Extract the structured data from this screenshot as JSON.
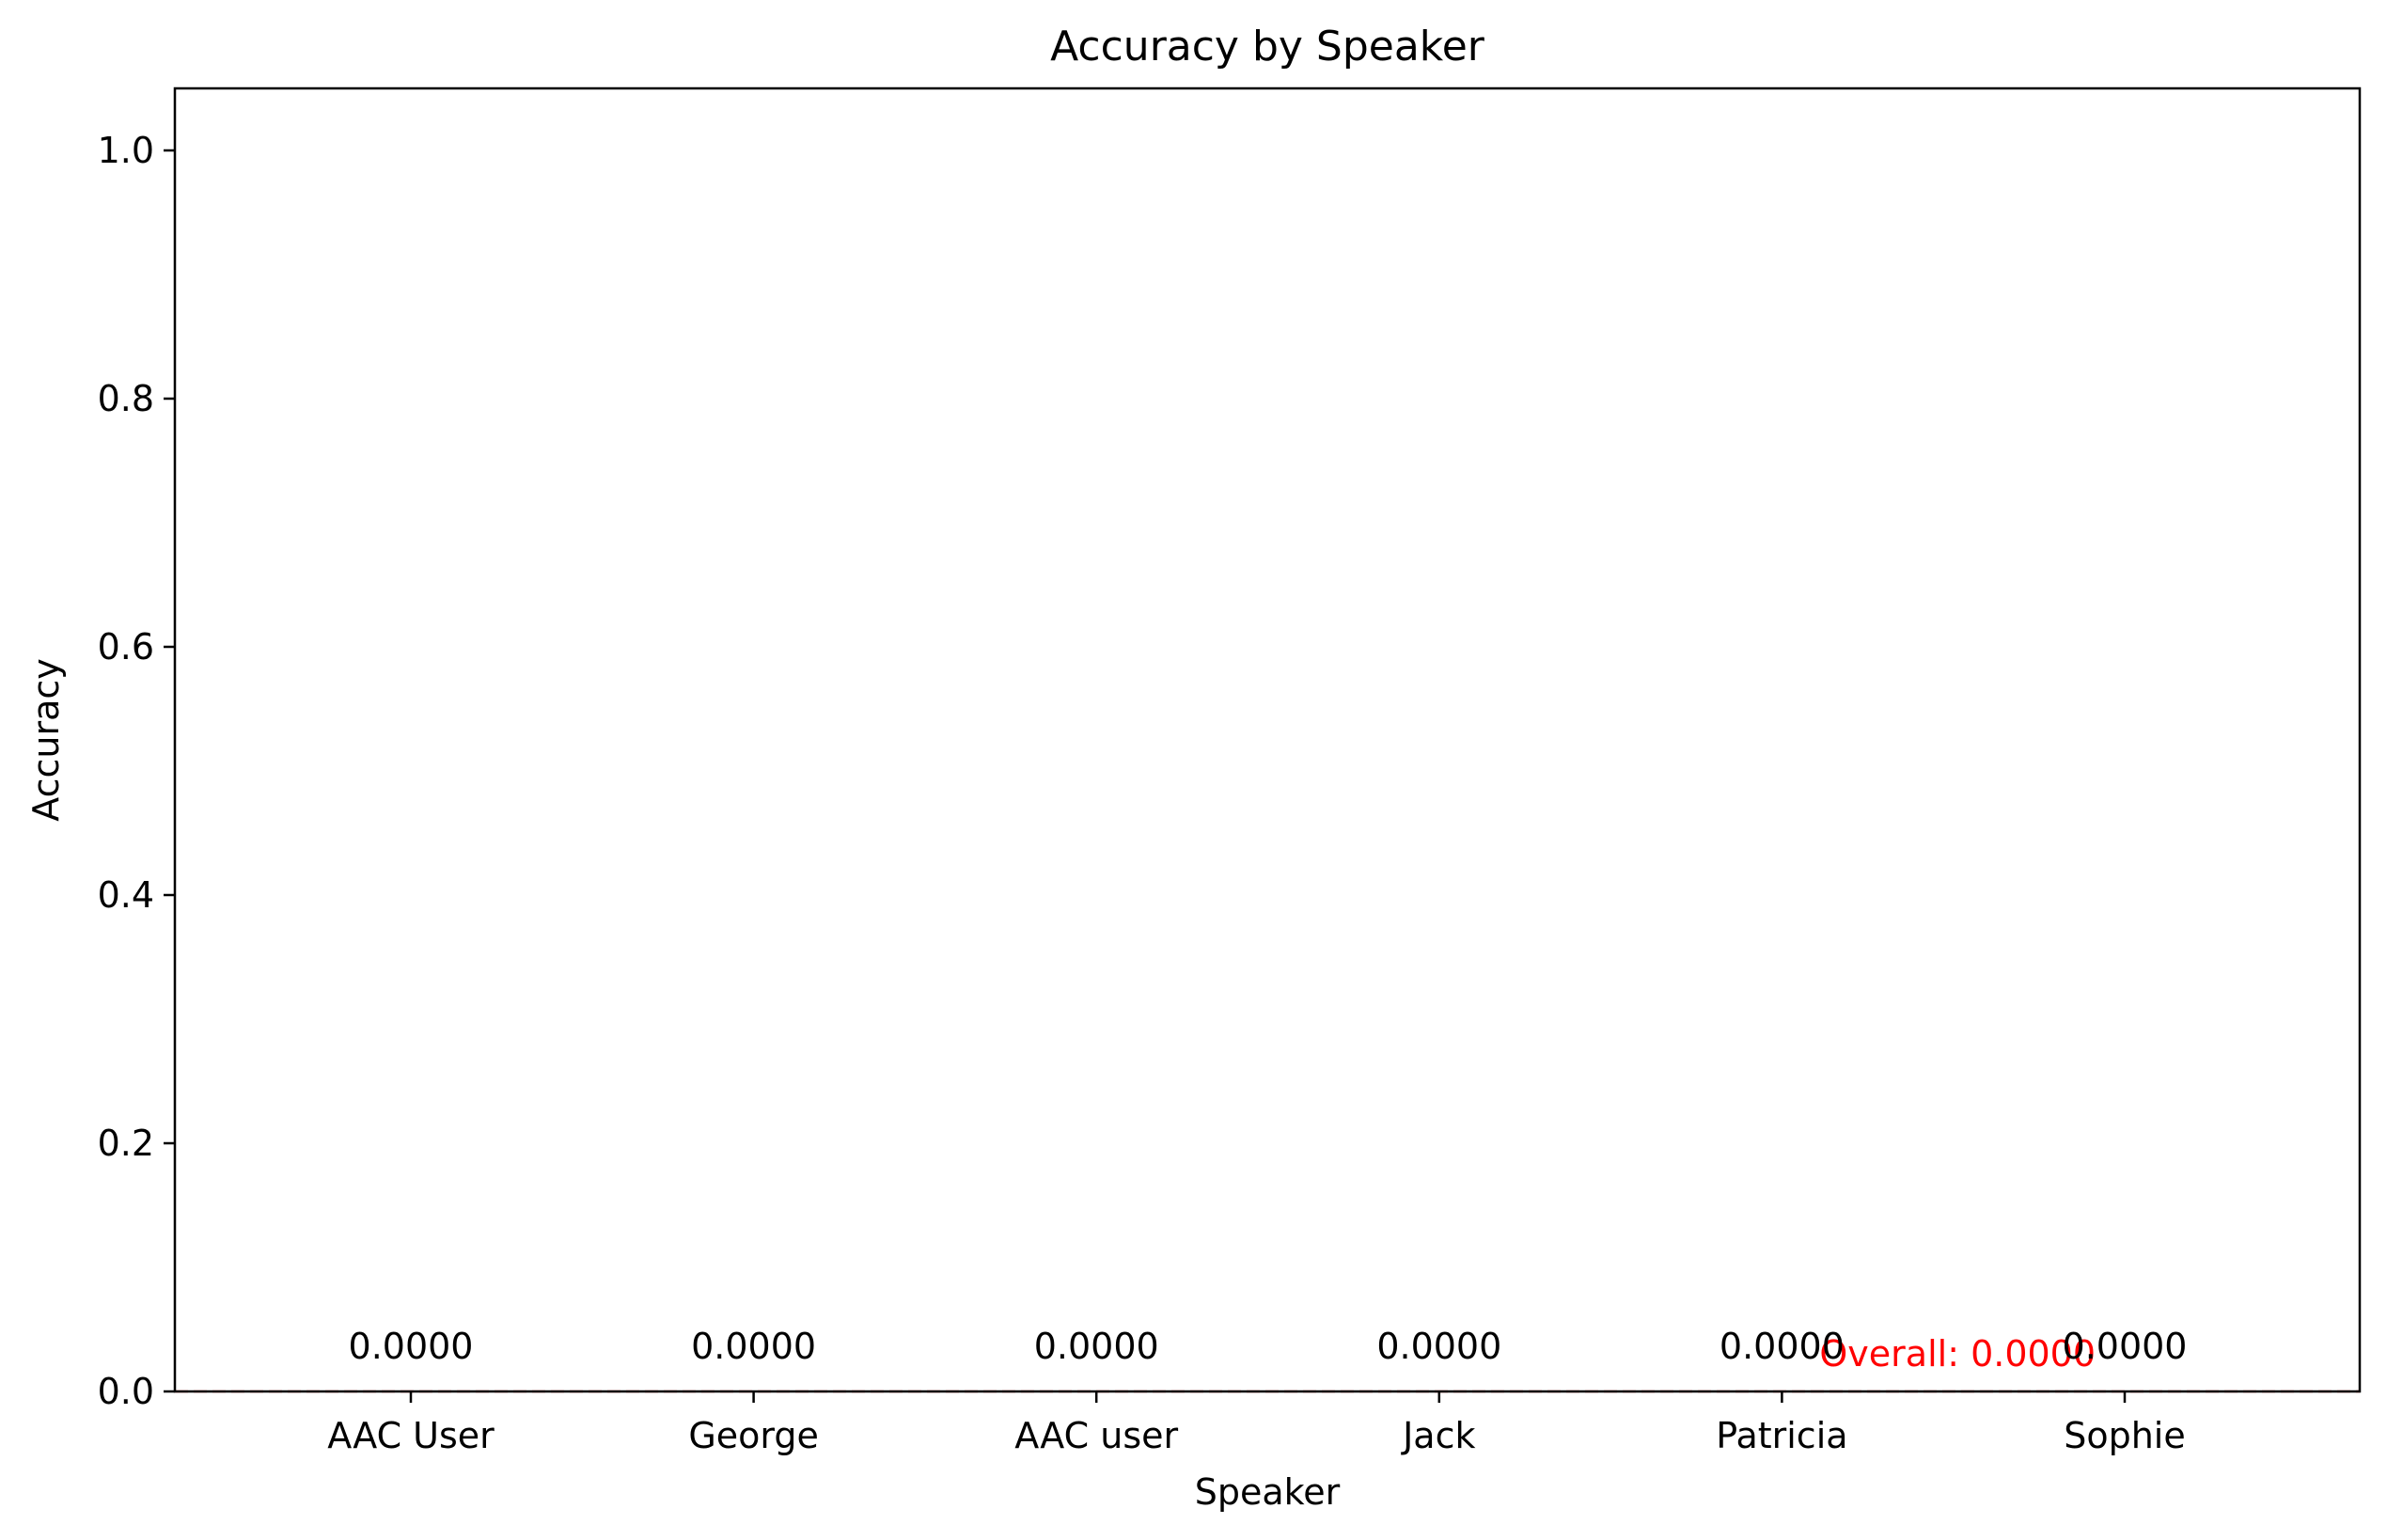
{
  "chart_data": {
    "type": "bar",
    "title": "Accuracy by Speaker",
    "xlabel": "Speaker",
    "ylabel": "Accuracy",
    "categories": [
      "AAC User",
      "George",
      "AAC user",
      "Jack",
      "Patricia",
      "Sophie"
    ],
    "values": [
      0.0,
      0.0,
      0.0,
      0.0,
      0.0,
      0.0
    ],
    "value_labels": [
      "0.0000",
      "0.0000",
      "0.0000",
      "0.0000",
      "0.0000",
      "0.0000"
    ],
    "ylim": [
      0,
      1.05
    ],
    "yticks": [
      "0.0",
      "0.2",
      "0.4",
      "0.6",
      "0.8",
      "1.0"
    ],
    "grid": false,
    "reference_line": {
      "value": 0.0,
      "label": "Overall: 0.0000",
      "style": "dashed",
      "color": "#ff0000"
    },
    "bar_color": "#1f77b4"
  }
}
